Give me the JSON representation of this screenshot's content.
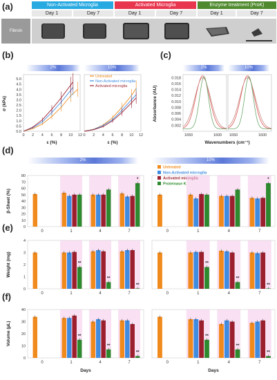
{
  "panels": {
    "a": "(a)",
    "b": "(b)",
    "c": "(c)",
    "d": "(d)",
    "e": "(e)",
    "f": "(f)"
  },
  "panel_a": {
    "groups": [
      {
        "label": "Non-Activated Microglia",
        "color": "#27a9e1"
      },
      {
        "label": "Activated Microglia",
        "color": "#e8364f"
      },
      {
        "label": "Enzyme treatment (ProK)",
        "color": "#4f8a2e"
      }
    ],
    "days": [
      "Day 1",
      "Day 7",
      "Day 1",
      "Day 7",
      "Day 1",
      "Day 7"
    ],
    "row_label": "Fibroin"
  },
  "conc_labels": [
    "2%",
    "10%"
  ],
  "legend_b": [
    "Untreated",
    "Non-Activated microglia",
    "Activated microglia"
  ],
  "legend_d": [
    "Untreated",
    "Non-Activated microglia",
    "Activated microglia",
    "Proteinase K"
  ],
  "colors": {
    "untreated": "#f08a1c",
    "nonact": "#3f8ce0",
    "act": "#9c1f2e",
    "prok": "#2e8a2e",
    "shade": "#f4c6ea"
  },
  "chart_data": [
    {
      "type": "line",
      "id": "b",
      "xlabel": "ε (%)",
      "ylabel": "σ (kPa)",
      "x_ticks": [
        0,
        2,
        4,
        6,
        8,
        10,
        12
      ],
      "y_ticks": [
        0.0,
        0.5,
        1.0,
        1.5,
        2.0,
        2.5,
        3.0,
        3.5,
        4.0,
        4.5,
        5.0
      ],
      "ylim": [
        0,
        5.4
      ],
      "xlim": [
        0,
        12
      ],
      "subpanels": [
        {
          "conc": "2%",
          "series": [
            {
              "name": "Untreated",
              "x": [
                0,
                2,
                4,
                6,
                8,
                10,
                11.5
              ],
              "y": [
                0,
                0.25,
                0.7,
                1.4,
                2.3,
                3.4,
                4.0
              ]
            },
            {
              "name": "Non-Activated microglia",
              "x": [
                0,
                2,
                4,
                6,
                8,
                10,
                10.5
              ],
              "y": [
                0,
                0.35,
                0.9,
                1.8,
                2.8,
                3.9,
                4.2
              ]
            },
            {
              "name": "Activated microglia",
              "x": [
                0,
                2,
                4,
                6,
                8,
                10,
                10.5
              ],
              "y": [
                0,
                0.4,
                1.1,
                2.1,
                3.2,
                4.4,
                4.7
              ]
            }
          ]
        },
        {
          "conc": "10%",
          "series": [
            {
              "name": "Untreated",
              "x": [
                0,
                2,
                4,
                6,
                8,
                10,
                11
              ],
              "y": [
                0,
                0.2,
                0.6,
                1.3,
                2.3,
                3.4,
                4.1
              ]
            },
            {
              "name": "Non-Activated microglia",
              "x": [
                0,
                2,
                4,
                6,
                8,
                10,
                11
              ],
              "y": [
                0,
                0.18,
                0.55,
                1.1,
                2.0,
                3.0,
                3.5
              ]
            },
            {
              "name": "Activated microglia",
              "x": [
                0,
                2,
                4,
                6,
                8,
                10,
                11
              ],
              "y": [
                0,
                0.15,
                0.45,
                1.0,
                1.8,
                2.7,
                3.2
              ]
            }
          ]
        }
      ]
    },
    {
      "type": "line",
      "id": "c",
      "xlabel": "Wavenumbers (cm⁻¹)",
      "ylabel": "Absorbance (AU)",
      "y_ticks": [
        0.002,
        0.004,
        0.006,
        0.008,
        0.01,
        0.012,
        0.014,
        0.016,
        0.018
      ],
      "ylim": [
        0,
        0.019
      ],
      "x_ticks_labels": [
        "1650",
        "1600"
      ],
      "subpanels": [
        {
          "conc": "2%",
          "peak": 1640
        },
        {
          "conc": "10%",
          "peak": 1635
        }
      ]
    },
    {
      "type": "bar",
      "id": "d",
      "ylabel": "β-Sheet (%)",
      "ylim": [
        0,
        80
      ],
      "y_ticks": [
        0,
        10,
        20,
        30,
        40,
        50,
        60,
        70,
        80
      ],
      "categories": [
        "0",
        "1",
        "4",
        "7"
      ],
      "subpanels": [
        {
          "conc": "2%",
          "values": [
            [
              51,
              null,
              null,
              null
            ],
            [
              53,
              48,
              50,
              50
            ],
            [
              50,
              50,
              50,
              58
            ],
            [
              52,
              47,
              48,
              68
            ]
          ],
          "stars": [
            null,
            null,
            null,
            "*"
          ]
        },
        {
          "conc": "10%",
          "values": [
            [
              50,
              null,
              null,
              null
            ],
            [
              50,
              44,
              51,
              50
            ],
            [
              48,
              48,
              48,
              58
            ],
            [
              45,
              44,
              45,
              68
            ]
          ],
          "stars": [
            null,
            null,
            null,
            "*"
          ]
        }
      ]
    },
    {
      "type": "bar",
      "id": "e",
      "ylabel": "Weight (mg)",
      "ylim": [
        0,
        4
      ],
      "y_ticks": [
        0,
        1,
        2,
        3,
        4
      ],
      "categories": [
        "0",
        "1",
        "4",
        "7"
      ],
      "subpanels": [
        {
          "conc": "2%",
          "values": [
            [
              3.0,
              null,
              null,
              null
            ],
            [
              3.0,
              3.0,
              3.05,
              1.8
            ],
            [
              3.1,
              3.2,
              3.1,
              0.55
            ],
            [
              3.1,
              3.2,
              3.2,
              0.02
            ]
          ],
          "stars": [
            null,
            "**",
            "**",
            "**"
          ]
        },
        {
          "conc": "10%",
          "values": [
            [
              3.0,
              null,
              null,
              null
            ],
            [
              3.0,
              3.05,
              3.05,
              1.8
            ],
            [
              3.15,
              3.1,
              3.0,
              0.55
            ],
            [
              3.0,
              2.95,
              3.0,
              0.02
            ]
          ],
          "stars": [
            null,
            "**",
            "**",
            "**"
          ]
        }
      ]
    },
    {
      "type": "bar",
      "id": "f",
      "xlabel": "Days",
      "ylabel": "Volume (µL)",
      "ylim": [
        0,
        40
      ],
      "y_ticks": [
        0,
        10,
        20,
        30,
        40
      ],
      "categories": [
        "0",
        "1",
        "4",
        "7"
      ],
      "subpanels": [
        {
          "conc": "2%",
          "values": [
            [
              34,
              null,
              null,
              null
            ],
            [
              33,
              33,
              35,
              15
            ],
            [
              30,
              32,
              31,
              7
            ],
            [
              31,
              31,
              28,
              1.5
            ]
          ],
          "stars": [
            null,
            "**",
            "**",
            "**"
          ]
        },
        {
          "conc": "10%",
          "values": [
            [
              34,
              null,
              null,
              null
            ],
            [
              32,
              32,
              31,
              15
            ],
            [
              28,
              31,
              30,
              7
            ],
            [
              29,
              30,
              31,
              1.5
            ]
          ],
          "stars": [
            null,
            "**",
            "**",
            "**"
          ]
        }
      ]
    }
  ]
}
